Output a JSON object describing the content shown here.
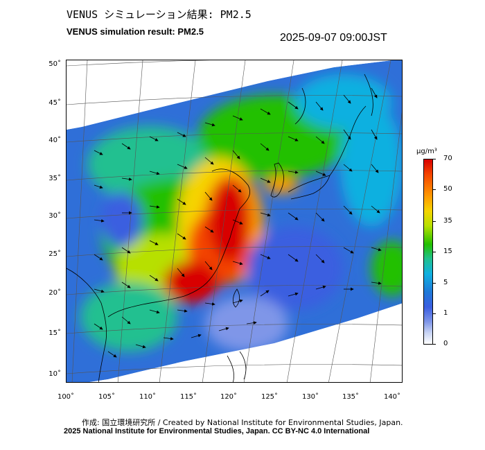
{
  "header": {
    "title_jp": "VENUS シミュレーション結果: PM2.5",
    "title_en": "VENUS simulation result: PM2.5",
    "timestamp": "2025-09-07 09:00JST"
  },
  "map": {
    "region": "East Asia",
    "quantity": "PM2.5",
    "lat_labels": [
      "50˚",
      "45˚",
      "40˚",
      "35˚",
      "30˚",
      "25˚",
      "20˚",
      "15˚",
      "10˚"
    ],
    "lon_labels": [
      "100˚",
      "105˚",
      "110˚",
      "115˚",
      "120˚",
      "125˚",
      "130˚",
      "135˚",
      "140˚"
    ],
    "lat_range": [
      9,
      51
    ],
    "lon_range": [
      100,
      141
    ],
    "high_concentration_area": "eastern China"
  },
  "colorbar": {
    "unit": "μg/m³",
    "ticks": [
      "70",
      "50",
      "35",
      "15",
      "5",
      "1",
      "0"
    ],
    "colors": [
      "#d80000",
      "#ff9a00",
      "#f5d400",
      "#22c000",
      "#10b0e0",
      "#1f78d8",
      "#ffffff"
    ]
  },
  "footer": {
    "credit_jp": "作成: 国立環境研究所 / Created by National Institute for Environmental Studies, Japan.",
    "copyright": "2025 National Institute for Environmental Studies, Japan. CC BY-NC 4.0 International"
  }
}
